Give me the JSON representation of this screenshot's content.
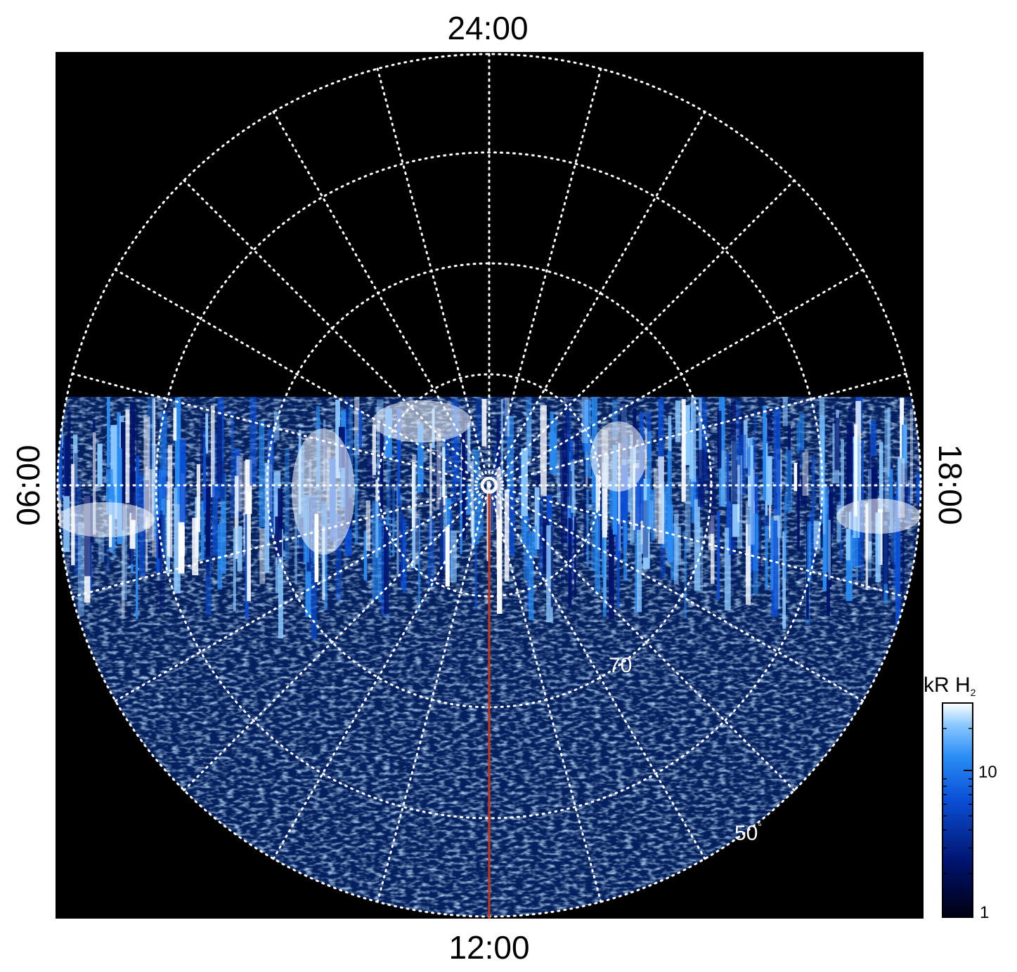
{
  "image": {
    "description_none": "",
    "colors": {
      "background": "#000000",
      "grid": "#ffffff",
      "meridian": "#cc3311",
      "colormap": [
        "#000010",
        "#00126b",
        "#0a4fd6",
        "#2a8df5",
        "#8cc9ff",
        "#ffffff"
      ]
    },
    "local_time_labels": {
      "top": "24:00",
      "bottom": "12:00",
      "left": "06:00",
      "right": "18:00"
    },
    "latitude_labels": {
      "inner": "70",
      "outer": "50",
      "degree_symbol": "°"
    },
    "colorbar": {
      "title": "kR H",
      "title_subscript": "2",
      "ticks": [
        {
          "label": "10",
          "value": 10
        },
        {
          "label": "1",
          "value": 1
        }
      ],
      "scale": "log"
    },
    "icons": {
      "pole_marker": "pole-circle-icon"
    }
  }
}
